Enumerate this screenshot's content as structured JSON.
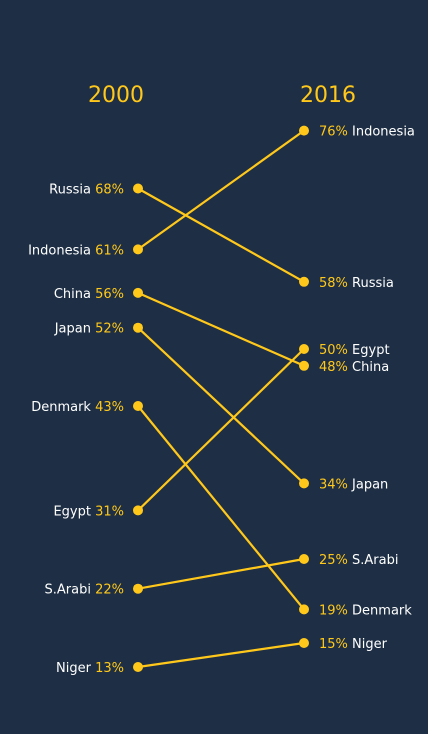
{
  "colors": {
    "background": "#1e2f45",
    "accent": "#ffc81a",
    "text": "#ffffff"
  },
  "chart_data": {
    "type": "line",
    "subtype": "slope",
    "categories": [
      "2000",
      "2016"
    ],
    "series": [
      {
        "name": "Russia",
        "values": [
          68,
          58
        ]
      },
      {
        "name": "Indonesia",
        "values": [
          61,
          76
        ]
      },
      {
        "name": "China",
        "values": [
          56,
          48
        ]
      },
      {
        "name": "Japan",
        "values": [
          52,
          34
        ]
      },
      {
        "name": "Denmark",
        "values": [
          43,
          19
        ]
      },
      {
        "name": "Egypt",
        "values": [
          31,
          50
        ]
      },
      {
        "name": "S.Arabi",
        "values": [
          22,
          25
        ]
      },
      {
        "name": "Niger",
        "values": [
          13,
          15
        ]
      }
    ],
    "unit": "%",
    "grid": false,
    "legend": "none"
  }
}
